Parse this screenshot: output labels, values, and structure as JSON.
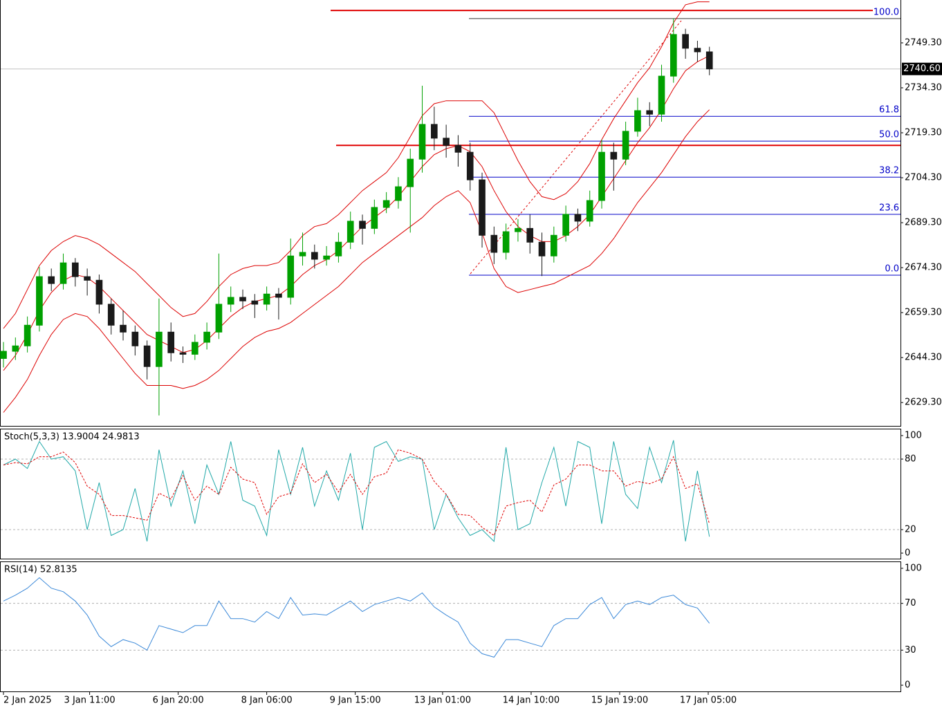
{
  "chart_data": [
    {
      "type": "candlestick",
      "xlim": [
        -0.29,
        74.97
      ],
      "xticks": [
        {
          "value": 0,
          "label": "2 Jan 2025"
        },
        {
          "value": 7.2,
          "label": "3 Jan 11:00"
        },
        {
          "value": 14.6,
          "label": "6 Jan 20:00"
        },
        {
          "value": 22,
          "label": "8 Jan 06:00"
        },
        {
          "value": 29.4,
          "label": "9 Jan 15:00"
        },
        {
          "value": 36.7,
          "label": "13 Jan 01:00"
        },
        {
          "value": 44.1,
          "label": "14 Jan 10:00"
        },
        {
          "value": 51.5,
          "label": "15 Jan 19:00"
        },
        {
          "value": 58.9,
          "label": "17 Jan 05:00"
        }
      ],
      "ylim": [
        2621.5,
        2763.6
      ],
      "yticks": [
        {
          "value": 2749.3,
          "label": "2749.30"
        },
        {
          "value": 2734.3,
          "label": "2734.30"
        },
        {
          "value": 2719.3,
          "label": "2719.30"
        },
        {
          "value": 2704.3,
          "label": "2704.30"
        },
        {
          "value": 2689.3,
          "label": "2689.30"
        },
        {
          "value": 2674.3,
          "label": "2674.30"
        },
        {
          "value": 2659.3,
          "label": "2659.30"
        },
        {
          "value": 2644.3,
          "label": "2644.30"
        },
        {
          "value": 2629.3,
          "label": "2629.30"
        }
      ],
      "up_color": "#00a000",
      "down_color": "#1a1a1a",
      "open": [
        2644.0,
        2646.4,
        2648.2,
        2655.1,
        2671.3,
        2669.0,
        2675.9,
        2671.3,
        2670.1,
        2662.1,
        2655.1,
        2652.8,
        2648.2,
        2641.3,
        2652.8,
        2645.9,
        2645.4,
        2649.4,
        2652.8,
        2662.1,
        2664.4,
        2663.2,
        2662.1,
        2665.5,
        2664.4,
        2678.2,
        2679.4,
        2677.1,
        2678.2,
        2682.8,
        2689.8,
        2687.4,
        2694.4,
        2696.7,
        2701.3,
        2710.5,
        2722.1,
        2717.5,
        2715.1,
        2712.8,
        2703.6,
        2685.1,
        2679.4,
        2686.3,
        2687.4,
        2682.8,
        2678.2,
        2685.1,
        2692.1,
        2689.8,
        2696.7,
        2712.8,
        2710.5,
        2719.8,
        2726.7,
        2725.5,
        2738.2,
        2752.1,
        2747.5,
        2746.3
      ],
      "high": [
        2649.5,
        2651.0,
        2658.0,
        2674.5,
        2674.0,
        2679.0,
        2677.5,
        2674.0,
        2672.0,
        2664.0,
        2660.0,
        2655.0,
        2650.0,
        2664.0,
        2656.0,
        2648.0,
        2652.0,
        2656.0,
        2679.0,
        2668.0,
        2667.0,
        2665.5,
        2668.0,
        2667.5,
        2684.0,
        2686.0,
        2682.0,
        2681.5,
        2686.0,
        2693.0,
        2692.0,
        2697.0,
        2699.5,
        2704.5,
        2714.0,
        2735.0,
        2728.0,
        2722.0,
        2718.5,
        2716.0,
        2706.0,
        2688.0,
        2689.0,
        2690.5,
        2692.0,
        2686.0,
        2688.0,
        2695.0,
        2694.0,
        2700.0,
        2717.0,
        2716.0,
        2723.0,
        2731.0,
        2729.5,
        2742.0,
        2757.5,
        2754.0,
        2750.0,
        2748.0
      ],
      "low": [
        2641.0,
        2643.5,
        2646.0,
        2653.0,
        2666.5,
        2667.0,
        2668.0,
        2665.0,
        2659.0,
        2652.0,
        2650.0,
        2645.0,
        2637.0,
        2625.0,
        2643.0,
        2642.5,
        2643.5,
        2647.0,
        2650.5,
        2659.5,
        2660.5,
        2657.5,
        2660.0,
        2657.0,
        2662.0,
        2675.0,
        2674.0,
        2675.0,
        2676.0,
        2680.5,
        2682.0,
        2685.5,
        2692.5,
        2694.0,
        2686.0,
        2706.0,
        2713.5,
        2711.0,
        2708.0,
        2700.0,
        2681.0,
        2675.5,
        2677.0,
        2683.0,
        2679.0,
        2671.5,
        2676.0,
        2683.0,
        2686.5,
        2688.0,
        2694.0,
        2700.0,
        2708.5,
        2718.0,
        2721.5,
        2723.0,
        2736.0,
        2744.0,
        2743.0,
        2738.5
      ],
      "close": [
        2646.4,
        2648.2,
        2655.1,
        2671.3,
        2669.0,
        2675.9,
        2671.3,
        2670.1,
        2662.1,
        2655.1,
        2652.8,
        2648.2,
        2641.3,
        2652.8,
        2645.9,
        2645.4,
        2649.4,
        2652.8,
        2662.1,
        2664.4,
        2663.2,
        2662.1,
        2665.5,
        2664.4,
        2678.2,
        2679.4,
        2677.1,
        2678.2,
        2682.8,
        2689.8,
        2687.4,
        2694.4,
        2696.7,
        2701.3,
        2710.5,
        2722.1,
        2717.5,
        2715.1,
        2712.8,
        2703.6,
        2685.1,
        2679.4,
        2686.3,
        2687.4,
        2682.8,
        2678.2,
        2685.1,
        2692.1,
        2689.8,
        2696.7,
        2712.8,
        2710.5,
        2719.8,
        2726.7,
        2725.5,
        2738.2,
        2752.1,
        2747.5,
        2746.3,
        2740.6
      ],
      "series": [
        {
          "color": "#dd0000",
          "values": [
            2654,
            2659,
            2667,
            2675,
            2680,
            2683,
            2685,
            2684,
            2682,
            2679,
            2676,
            2673,
            2669,
            2665,
            2661,
            2658,
            2659,
            2663,
            2668,
            2672,
            2674,
            2675,
            2675,
            2676,
            2680,
            2685,
            2688,
            2689,
            2692,
            2696,
            2700,
            2703,
            2706,
            2711,
            2718,
            2725,
            2729,
            2730,
            2730,
            2730,
            2730,
            2726,
            2718,
            2710,
            2703,
            2698,
            2697,
            2699,
            2703,
            2709,
            2717,
            2724,
            2730,
            2736,
            2741,
            2748,
            2756,
            2762,
            2763,
            2763
          ]
        },
        {
          "color": "#dd0000",
          "values": [
            2640,
            2645,
            2652,
            2660,
            2666,
            2670,
            2672,
            2671,
            2668,
            2664,
            2660,
            2656,
            2652,
            2650,
            2648,
            2646,
            2647,
            2650,
            2654,
            2658,
            2661,
            2663,
            2664,
            2665,
            2668,
            2672,
            2675,
            2677,
            2680,
            2684,
            2688,
            2691,
            2694,
            2698,
            2703,
            2708,
            2712,
            2714,
            2715,
            2713,
            2708,
            2700,
            2693,
            2688,
            2685,
            2683,
            2683,
            2685,
            2688,
            2692,
            2698,
            2704,
            2710,
            2716,
            2721,
            2727,
            2734,
            2740,
            2743,
            2745
          ]
        },
        {
          "color": "#dd0000",
          "values": [
            2626,
            2631,
            2637,
            2645,
            2652,
            2657,
            2659,
            2658,
            2654,
            2649,
            2644,
            2639,
            2635,
            2635,
            2635,
            2634,
            2635,
            2637,
            2640,
            2644,
            2648,
            2651,
            2653,
            2654,
            2656,
            2659,
            2662,
            2665,
            2668,
            2672,
            2676,
            2679,
            2682,
            2685,
            2688,
            2691,
            2695,
            2698,
            2700,
            2696,
            2686,
            2674,
            2668,
            2666,
            2667,
            2668,
            2669,
            2671,
            2673,
            2675,
            2679,
            2684,
            2690,
            2696,
            2701,
            2706,
            2712,
            2718,
            2723,
            2727
          ]
        }
      ],
      "fib_color": "#0000c8",
      "fib_levels": [
        {
          "value": 2757.4,
          "label": "100.0"
        },
        {
          "value": 2724.8,
          "label": "61.8"
        },
        {
          "value": 2716.5,
          "label": "50.0"
        },
        {
          "value": 2704.5,
          "label": "38.2"
        },
        {
          "value": 2692.1,
          "label": "23.6"
        },
        {
          "value": 2671.8,
          "label": "0.0"
        }
      ],
      "hline_color": "#e00000",
      "hlines": [
        2760.1,
        2715.1
      ],
      "last_price": {
        "value": 2740.6,
        "label": "2740.60"
      }
    },
    {
      "type": "line",
      "title": "Stoch(5,3,3) 13.9004 24.9813",
      "ylim": [
        -4.7,
        105.3
      ],
      "yticks": [
        100,
        80,
        20,
        0
      ],
      "level_lines": [
        80,
        20
      ],
      "series": [
        {
          "color": "#20a8a8",
          "values": [
            75,
            80,
            72,
            95,
            80,
            82,
            70,
            20,
            60,
            15,
            20,
            55,
            10,
            88,
            40,
            70,
            25,
            75,
            50,
            95,
            45,
            40,
            15,
            88,
            50,
            90,
            40,
            70,
            45,
            85,
            20,
            90,
            95,
            78,
            82,
            80,
            20,
            50,
            30,
            15,
            20,
            10,
            90,
            20,
            25,
            60,
            90,
            40,
            95,
            90,
            25,
            95,
            50,
            38,
            90,
            60,
            96,
            10,
            70,
            14
          ]
        },
        {
          "color": "#e00000",
          "dash": true,
          "values": [
            75,
            77,
            76,
            82,
            82,
            86,
            77,
            57,
            50,
            32,
            32,
            30,
            28,
            51,
            46,
            66,
            45,
            57,
            50,
            73,
            63,
            60,
            33,
            48,
            51,
            76,
            60,
            67,
            52,
            67,
            50,
            65,
            68,
            88,
            85,
            80,
            61,
            50,
            33,
            32,
            22,
            15,
            40,
            43,
            45,
            35,
            58,
            63,
            75,
            75,
            70,
            70,
            57,
            61,
            59,
            63,
            82,
            55,
            59,
            25
          ]
        }
      ]
    },
    {
      "type": "line",
      "title": "RSI(14) 52.8135",
      "ylim": [
        -5.3,
        105.3
      ],
      "yticks": [
        100,
        70,
        30,
        0
      ],
      "level_lines": [
        70,
        30
      ],
      "series": [
        {
          "color": "#3a88d8",
          "values": [
            72,
            77,
            83,
            92,
            83,
            80,
            72,
            60,
            42,
            33,
            39,
            36,
            30,
            51,
            48,
            45,
            51,
            51,
            72,
            57,
            57,
            54,
            63,
            57,
            75,
            60,
            61,
            60,
            66,
            72,
            63,
            69,
            72,
            75,
            72,
            79,
            67,
            60,
            54,
            36,
            27,
            24,
            39,
            39,
            36,
            33,
            51,
            57,
            57,
            69,
            75,
            57,
            69,
            72,
            69,
            75,
            77,
            69,
            66,
            53
          ]
        }
      ]
    }
  ]
}
